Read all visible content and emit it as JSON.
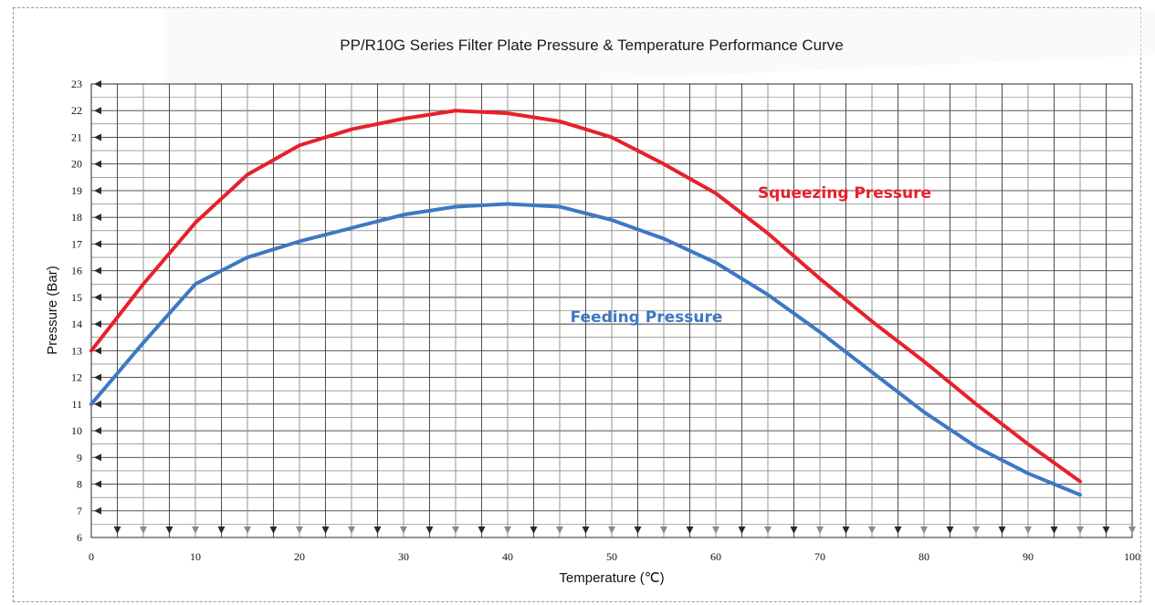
{
  "chart_data": {
    "type": "line",
    "title": "PP/R10G Series Filter Plate Pressure & Temperature Performance Curve",
    "xlabel": "Temperature (℃)",
    "ylabel": "Pressure (Bar)",
    "xlim": [
      0,
      100
    ],
    "ylim": [
      6,
      23
    ],
    "x_ticks": [
      "0",
      "10",
      "20",
      "30",
      "40",
      "50",
      "60",
      "70",
      "80",
      "90",
      "100"
    ],
    "y_ticks": [
      "6",
      "7",
      "8",
      "9",
      "10",
      "11",
      "12",
      "13",
      "14",
      "15",
      "16",
      "17",
      "18",
      "19",
      "20",
      "21",
      "22",
      "23"
    ],
    "grid": true,
    "legend": "none",
    "series": [
      {
        "name": "Squeezing Pressure",
        "color": "#e8202a",
        "x": [
          0,
          5,
          10,
          15,
          20,
          25,
          30,
          35,
          40,
          45,
          50,
          55,
          60,
          65,
          70,
          75,
          80,
          85,
          90,
          95
        ],
        "y": [
          13.0,
          15.5,
          17.8,
          19.6,
          20.7,
          21.3,
          21.7,
          22.0,
          21.9,
          21.6,
          21.0,
          20.0,
          18.9,
          17.4,
          15.7,
          14.1,
          12.6,
          11.0,
          9.5,
          8.1
        ]
      },
      {
        "name": "Feeding Pressure",
        "color": "#3d78c4",
        "x": [
          0,
          5,
          10,
          15,
          20,
          25,
          30,
          35,
          40,
          45,
          50,
          55,
          60,
          65,
          70,
          75,
          80,
          85,
          90,
          95
        ],
        "y": [
          11.0,
          13.3,
          15.5,
          16.5,
          17.1,
          17.6,
          18.1,
          18.4,
          18.5,
          18.4,
          17.9,
          17.2,
          16.3,
          15.1,
          13.7,
          12.2,
          10.7,
          9.4,
          8.4,
          7.6
        ]
      }
    ]
  }
}
